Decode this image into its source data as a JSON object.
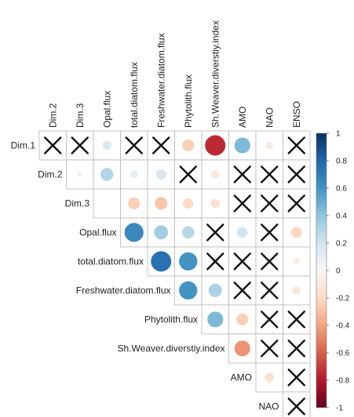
{
  "chart_data": {
    "type": "heatmap",
    "subtype": "upper-triangle correlation matrix (circles sized and coloured by r; X marks non-significant pairs)",
    "columns": [
      "Dim.2",
      "Dim.3",
      "Opal.flux",
      "total.diatom.flux",
      "Freshwater.diatom.flux",
      "Phytolith.flux",
      "Sh.Weaver.diverstiy.index",
      "AMO",
      "NAO",
      "ENSO"
    ],
    "rows": [
      "Dim.1",
      "Dim.2",
      "Dim.3",
      "Opal.flux",
      "total.diatom.flux",
      "Freshwater.diatom.flux",
      "Phytolith.flux",
      "Sh.Weaver.diverstiy.index",
      "AMO",
      "NAO"
    ],
    "values": [
      [
        null,
        null,
        0.15,
        null,
        null,
        -0.25,
        -0.75,
        0.45,
        -0.1,
        null
      ],
      [
        null,
        0.05,
        0.3,
        0.1,
        0.18,
        null,
        -0.12,
        null,
        null,
        null
      ],
      [
        null,
        null,
        null,
        -0.25,
        -0.28,
        -0.2,
        -0.15,
        null,
        null,
        null
      ],
      [
        null,
        null,
        null,
        0.65,
        0.35,
        0.28,
        null,
        0.2,
        null,
        -0.22
      ],
      [
        null,
        null,
        null,
        null,
        0.75,
        0.6,
        0.1,
        null,
        null,
        -0.08
      ],
      [
        null,
        null,
        null,
        null,
        null,
        0.6,
        0.32,
        null,
        null,
        -0.12
      ],
      [
        null,
        null,
        null,
        null,
        null,
        null,
        0.45,
        -0.25,
        null,
        null
      ],
      [
        null,
        null,
        null,
        null,
        null,
        null,
        null,
        -0.45,
        null,
        null
      ],
      [
        null,
        null,
        null,
        null,
        null,
        null,
        null,
        null,
        -0.15,
        null
      ],
      [
        null,
        null,
        null,
        null,
        null,
        null,
        null,
        null,
        null,
        null
      ]
    ],
    "non_significant": [
      [
        0,
        0
      ],
      [
        0,
        1
      ],
      [
        0,
        3
      ],
      [
        0,
        4
      ],
      [
        0,
        9
      ],
      [
        1,
        0
      ],
      [
        1,
        5
      ],
      [
        1,
        7
      ],
      [
        1,
        8
      ],
      [
        1,
        9
      ],
      [
        2,
        1
      ],
      [
        2,
        7
      ],
      [
        2,
        8
      ],
      [
        2,
        9
      ],
      [
        3,
        6
      ],
      [
        3,
        8
      ],
      [
        4,
        6
      ],
      [
        4,
        7
      ],
      [
        4,
        8
      ],
      [
        5,
        7
      ],
      [
        5,
        8
      ],
      [
        6,
        8
      ],
      [
        6,
        9
      ],
      [
        7,
        8
      ],
      [
        7,
        9
      ],
      [
        8,
        9
      ],
      [
        9,
        9
      ]
    ],
    "colorbar": {
      "range": [
        -1,
        1
      ],
      "ticks": [
        1,
        0.8,
        0.6,
        0.4,
        0.2,
        0,
        -0.2,
        -0.4,
        -0.6,
        -0.8,
        -1
      ],
      "tick_labels": [
        "1",
        "0.8",
        "0.6",
        "0.4",
        "0.2",
        "0",
        "-0.2",
        "-0.4",
        "-0.6",
        "-0.8",
        "-1"
      ],
      "colors": [
        "#67001f",
        "#b2182b",
        "#d6604d",
        "#f4a582",
        "#fddbc7",
        "#f7f7f7",
        "#d1e5f0",
        "#92c5de",
        "#4393c3",
        "#2166ac",
        "#053061"
      ]
    },
    "grid": true,
    "legend": "right"
  }
}
